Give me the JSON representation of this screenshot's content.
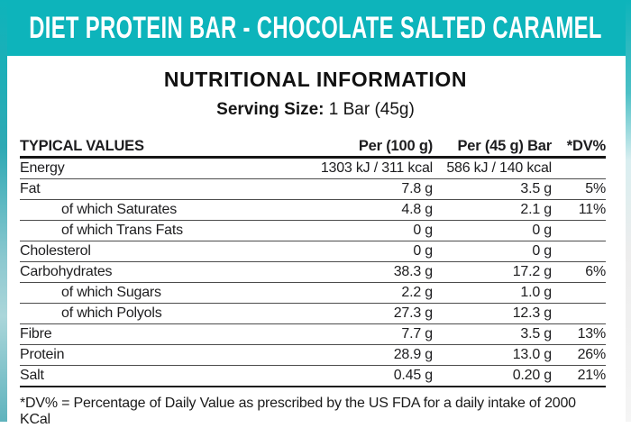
{
  "header": {
    "title": "DIET PROTEIN BAR - CHOCOLATE SALTED CARAMEL"
  },
  "section": {
    "title": "NUTRITIONAL INFORMATION",
    "serving_label": "Serving Size:",
    "serving_value": "1 Bar (45g)"
  },
  "table": {
    "columns": [
      "TYPICAL VALUES",
      "Per (100 g)",
      "Per (45 g) Bar",
      "*DV%"
    ],
    "rows": [
      {
        "label": "Energy",
        "indent": false,
        "per100": "1303 kJ / 311 kcal",
        "per45": "586 kJ / 140 kcal",
        "dv": ""
      },
      {
        "label": "Fat",
        "indent": false,
        "per100": "7.8 g",
        "per45": "3.5 g",
        "dv": "5%"
      },
      {
        "label": "of which Saturates",
        "indent": true,
        "per100": "4.8 g",
        "per45": "2.1 g",
        "dv": "11%"
      },
      {
        "label": "of which Trans Fats",
        "indent": true,
        "per100": "0 g",
        "per45": "0 g",
        "dv": ""
      },
      {
        "label": "Cholesterol",
        "indent": false,
        "per100": "0 g",
        "per45": "0 g",
        "dv": ""
      },
      {
        "label": "Carbohydrates",
        "indent": false,
        "per100": "38.3 g",
        "per45": "17.2 g",
        "dv": "6%"
      },
      {
        "label": "of which Sugars",
        "indent": true,
        "per100": "2.2 g",
        "per45": "1.0 g",
        "dv": ""
      },
      {
        "label": "of which Polyols",
        "indent": true,
        "per100": "27.3 g",
        "per45": "12.3 g",
        "dv": ""
      },
      {
        "label": "Fibre",
        "indent": false,
        "per100": "7.7 g",
        "per45": "3.5 g",
        "dv": "13%"
      },
      {
        "label": "Protein",
        "indent": false,
        "per100": "28.9 g",
        "per45": "13.0 g",
        "dv": "26%"
      },
      {
        "label": "Salt",
        "indent": false,
        "per100": "0.45 g",
        "per45": "0.20 g",
        "dv": "21%"
      }
    ]
  },
  "footnote": "*DV% = Percentage of Daily Value as prescribed by the US FDA for a daily intake of 2000 KCal",
  "colors": {
    "accent_teal": "#0db4bb",
    "header_text": "#ffffff",
    "body_text": "#1d1d1f"
  }
}
